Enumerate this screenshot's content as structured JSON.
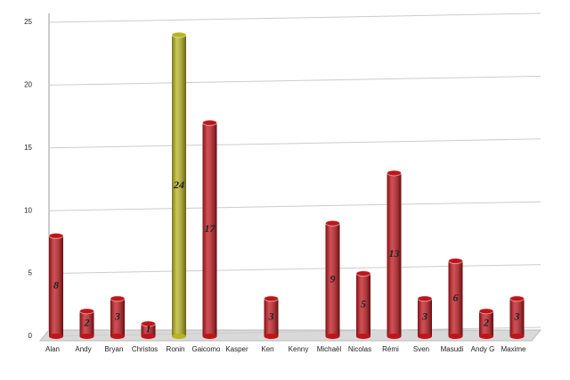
{
  "chart_data": {
    "type": "bar",
    "categories": [
      "Alan",
      "Andy",
      "Bryan",
      "Christos",
      "Ronin",
      "Gaicomo",
      "Kasper",
      "Ken",
      "Kenny",
      "Michaël",
      "Nicolas",
      "Rémi",
      "Sven",
      "Masudi",
      "Andy G",
      "Maxime"
    ],
    "values": [
      8,
      2,
      3,
      1,
      24,
      17,
      null,
      3,
      null,
      9,
      5,
      13,
      3,
      6,
      2,
      3
    ],
    "colors": [
      "#c0141a",
      "#c0141a",
      "#c0141a",
      "#c0141a",
      "#b8b41e",
      "#c0141a",
      "#c0141a",
      "#c0141a",
      "#c0141a",
      "#c0141a",
      "#c0141a",
      "#c0141a",
      "#c0141a",
      "#c0141a",
      "#c0141a",
      "#c0141a"
    ],
    "ylim": [
      0,
      25
    ],
    "yticks": [
      0,
      5,
      10,
      15,
      20,
      25
    ],
    "grid": true
  }
}
